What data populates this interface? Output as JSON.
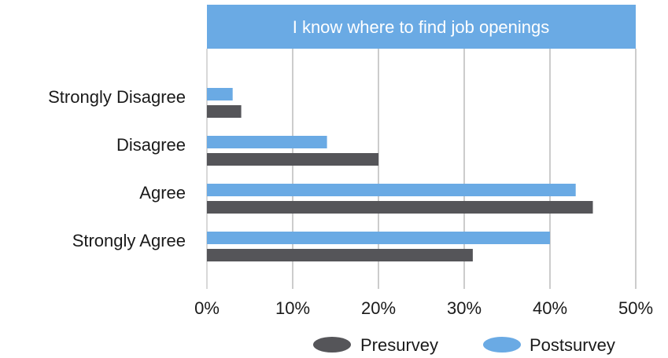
{
  "chart_data": {
    "type": "bar",
    "orientation": "horizontal",
    "title": "I know where to find job openings",
    "categories": [
      "Strongly Disagree",
      "Disagree",
      "Agree",
      "Strongly Agree"
    ],
    "series": [
      {
        "name": "Postsurvey",
        "color": "#6aaae4",
        "values": [
          3,
          14,
          43,
          40
        ]
      },
      {
        "name": "Presurvey",
        "color": "#555559",
        "values": [
          4,
          20,
          45,
          31
        ]
      }
    ],
    "xlim": [
      0,
      50
    ],
    "xticks": [
      "0%",
      "10%",
      "20%",
      "30%",
      "40%",
      "50%"
    ],
    "xlabel": "",
    "ylabel": "",
    "grid": true,
    "legend_position": "bottom-right",
    "legend": [
      "Presurvey",
      "Postsurvey"
    ],
    "title_banner_color": "#6aaae4",
    "grid_color": "#9a9a9a"
  }
}
